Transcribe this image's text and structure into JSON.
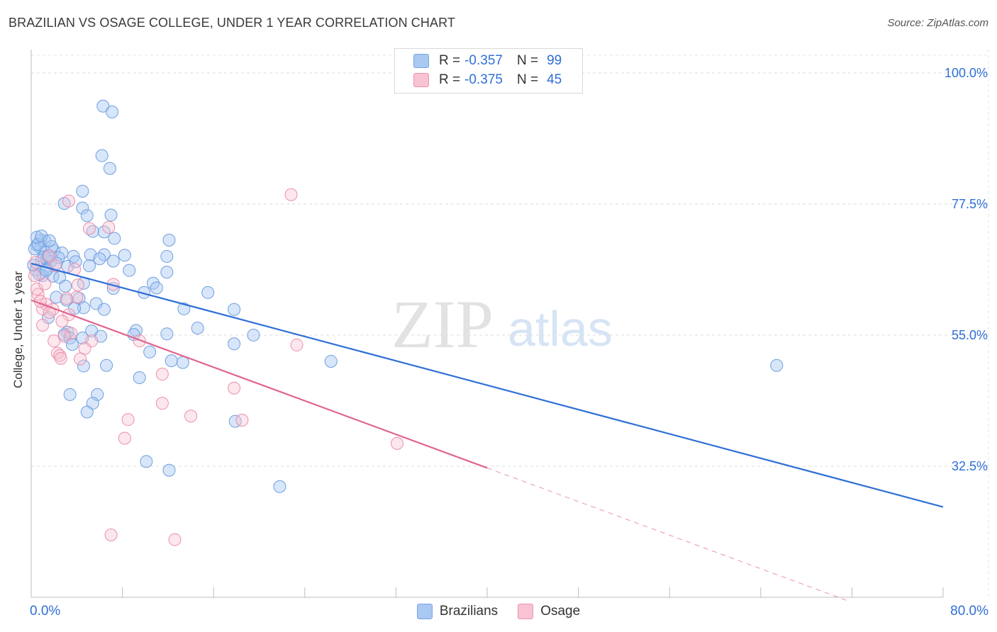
{
  "title": "BRAZILIAN VS OSAGE COLLEGE, UNDER 1 YEAR CORRELATION CHART",
  "source": "Source: ZipAtlas.com",
  "watermark": {
    "zip": "ZIP",
    "atlas": "atlas"
  },
  "legend_top": [
    {
      "r_label": "R =",
      "r_value": "-0.357",
      "n_label": "N =",
      "n_value": "99",
      "color": "#a9c8f2",
      "border": "#7aa5e3"
    },
    {
      "r_label": "R =",
      "r_value": "-0.375",
      "n_label": "N =",
      "n_value": "45",
      "color": "#f8c3d3",
      "border": "#ee92af"
    }
  ],
  "legend_bottom": [
    {
      "label": "Brazilians",
      "color": "#a9c8f2",
      "border": "#7aa5e3"
    },
    {
      "label": "Osage",
      "color": "#f8c3d3",
      "border": "#ee92af"
    }
  ],
  "colors": {
    "blue": "#2f6fd6",
    "pink": "#e0648f",
    "blue_fill": "#a9c8f2",
    "pink_fill": "#f8c3d3"
  },
  "chart_data": {
    "type": "scatter",
    "title": "BRAZILIAN VS OSAGE COLLEGE, UNDER 1 YEAR CORRELATION CHART",
    "xlabel": "",
    "ylabel": "College, Under 1 year",
    "xlim": [
      0,
      80
    ],
    "ylim": [
      10,
      104
    ],
    "x_tick_labels": [
      "0.0%",
      "80.0%"
    ],
    "y_ticks": [
      100,
      77.5,
      55,
      32.5
    ],
    "y_tick_labels": [
      "100.0%",
      "77.5%",
      "55.0%",
      "32.5%"
    ],
    "grid": true,
    "series": [
      {
        "name": "Brazilians",
        "color": "#2f6fd6",
        "trend": {
          "x": [
            0,
            80
          ],
          "y": [
            67.3,
            25.5
          ],
          "dashed_from": null
        },
        "points": [
          [
            6.3,
            94.3
          ],
          [
            7.1,
            93.3
          ],
          [
            6.2,
            85.8
          ],
          [
            6.9,
            83.6
          ],
          [
            4.5,
            79.7
          ],
          [
            2.9,
            77.6
          ],
          [
            4.5,
            76.8
          ],
          [
            7.0,
            75.6
          ],
          [
            4.9,
            75.5
          ],
          [
            5.4,
            72.8
          ],
          [
            6.4,
            72.7
          ],
          [
            7.3,
            71.6
          ],
          [
            12.1,
            71.3
          ],
          [
            0.8,
            71.3
          ],
          [
            1.2,
            71.2
          ],
          [
            0.5,
            70.4
          ],
          [
            0.8,
            70.0
          ],
          [
            2.0,
            69.5
          ],
          [
            1.2,
            69.2
          ],
          [
            2.7,
            69.1
          ],
          [
            5.2,
            68.8
          ],
          [
            6.4,
            68.8
          ],
          [
            8.2,
            68.7
          ],
          [
            11.9,
            68.5
          ],
          [
            3.7,
            68.5
          ],
          [
            6.0,
            68.1
          ],
          [
            1.4,
            67.9
          ],
          [
            7.2,
            67.7
          ],
          [
            1.7,
            67.6
          ],
          [
            0.9,
            67.8
          ],
          [
            5.1,
            66.9
          ],
          [
            3.2,
            66.8
          ],
          [
            1.4,
            66.3
          ],
          [
            8.6,
            66.1
          ],
          [
            11.9,
            65.8
          ],
          [
            1.0,
            65.2
          ],
          [
            1.9,
            65.1
          ],
          [
            2.5,
            64.9
          ],
          [
            4.6,
            63.9
          ],
          [
            10.7,
            63.9
          ],
          [
            3.0,
            63.4
          ],
          [
            7.2,
            63.0
          ],
          [
            11.0,
            63.1
          ],
          [
            9.9,
            62.3
          ],
          [
            15.5,
            62.3
          ],
          [
            2.2,
            61.5
          ],
          [
            4.2,
            61.3
          ],
          [
            3.1,
            61.0
          ],
          [
            5.7,
            60.4
          ],
          [
            4.6,
            59.7
          ],
          [
            3.8,
            59.6
          ],
          [
            6.4,
            59.4
          ],
          [
            13.4,
            59.5
          ],
          [
            17.8,
            59.4
          ],
          [
            1.5,
            58.0
          ],
          [
            14.6,
            56.2
          ],
          [
            9.2,
            55.8
          ],
          [
            5.3,
            55.7
          ],
          [
            3.2,
            55.5
          ],
          [
            2.9,
            55.1
          ],
          [
            9.0,
            55.1
          ],
          [
            11.9,
            55.2
          ],
          [
            19.5,
            55.0
          ],
          [
            6.1,
            54.8
          ],
          [
            3.4,
            54.5
          ],
          [
            4.5,
            54.5
          ],
          [
            17.8,
            53.5
          ],
          [
            3.6,
            53.4
          ],
          [
            10.4,
            52.1
          ],
          [
            12.3,
            50.6
          ],
          [
            13.3,
            50.3
          ],
          [
            26.3,
            50.5
          ],
          [
            65.4,
            49.8
          ],
          [
            4.6,
            49.7
          ],
          [
            6.6,
            49.8
          ],
          [
            9.5,
            47.7
          ],
          [
            3.4,
            44.8
          ],
          [
            5.8,
            44.8
          ],
          [
            5.4,
            43.3
          ],
          [
            4.9,
            41.8
          ],
          [
            17.9,
            40.2
          ],
          [
            10.1,
            33.3
          ],
          [
            12.1,
            31.8
          ],
          [
            21.8,
            29.0
          ],
          [
            0.3,
            69.8
          ],
          [
            0.6,
            70.6
          ],
          [
            1.1,
            68.4
          ],
          [
            1.5,
            68.6
          ],
          [
            2.4,
            68.3
          ],
          [
            0.4,
            66.2
          ],
          [
            0.7,
            65.4
          ],
          [
            1.3,
            66.1
          ],
          [
            0.2,
            67.0
          ],
          [
            2.2,
            67.3
          ],
          [
            3.9,
            67.6
          ],
          [
            0.5,
            71.8
          ],
          [
            1.8,
            70.2
          ],
          [
            0.9,
            72.0
          ],
          [
            1.6,
            71.2
          ]
        ]
      },
      {
        "name": "Osage",
        "color": "#e0648f",
        "trend": {
          "x": [
            0,
            40,
            71.5
          ],
          "y": [
            61.0,
            32.2,
            9.5
          ],
          "dashed_from": 40
        },
        "points": [
          [
            22.8,
            79.1
          ],
          [
            3.3,
            78.0
          ],
          [
            5.1,
            73.3
          ],
          [
            6.8,
            73.5
          ],
          [
            1.6,
            68.6
          ],
          [
            0.4,
            67.5
          ],
          [
            3.8,
            66.3
          ],
          [
            0.3,
            65.2
          ],
          [
            7.2,
            63.7
          ],
          [
            4.1,
            63.6
          ],
          [
            0.6,
            62.0
          ],
          [
            4.0,
            61.5
          ],
          [
            3.1,
            61.3
          ],
          [
            1.3,
            60.3
          ],
          [
            1.0,
            59.5
          ],
          [
            1.9,
            59.4
          ],
          [
            1.6,
            58.9
          ],
          [
            3.3,
            58.5
          ],
          [
            2.7,
            57.4
          ],
          [
            1.0,
            56.7
          ],
          [
            3.5,
            55.3
          ],
          [
            2.9,
            54.8
          ],
          [
            2.0,
            54.0
          ],
          [
            5.3,
            54.0
          ],
          [
            9.5,
            54.0
          ],
          [
            23.3,
            53.3
          ],
          [
            4.7,
            52.7
          ],
          [
            2.3,
            51.9
          ],
          [
            2.5,
            51.5
          ],
          [
            2.6,
            51.0
          ],
          [
            4.3,
            50.9
          ],
          [
            11.5,
            48.3
          ],
          [
            17.8,
            45.9
          ],
          [
            11.5,
            43.3
          ],
          [
            14.0,
            41.1
          ],
          [
            8.5,
            40.5
          ],
          [
            18.5,
            40.4
          ],
          [
            8.2,
            37.3
          ],
          [
            32.1,
            36.4
          ],
          [
            7.0,
            20.7
          ],
          [
            12.6,
            19.9
          ],
          [
            0.5,
            62.9
          ],
          [
            1.2,
            63.8
          ],
          [
            2.1,
            66.9
          ],
          [
            0.8,
            60.8
          ]
        ]
      }
    ]
  }
}
